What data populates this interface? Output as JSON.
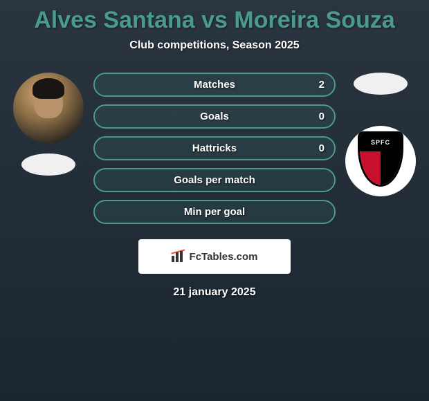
{
  "header": {
    "title": "Alves Santana vs Moreira Souza",
    "subtitle": "Club competitions, Season 2025"
  },
  "stats": [
    {
      "label": "Matches",
      "left_value": "2"
    },
    {
      "label": "Goals",
      "left_value": "0"
    },
    {
      "label": "Hattricks",
      "left_value": "0"
    },
    {
      "label": "Goals per match",
      "left_value": ""
    },
    {
      "label": "Min per goal",
      "left_value": ""
    }
  ],
  "club_badge": {
    "text": "SPFC",
    "colors": {
      "red": "#c8102e",
      "black": "#000000",
      "white": "#ffffff"
    }
  },
  "attribution": {
    "text": "FcTables.com"
  },
  "date": "21 january 2025",
  "styling": {
    "title_color": "#4a9b8e",
    "stat_border_color": "#4a9b8e",
    "stat_bg_color": "rgba(74, 155, 142, 0.12)",
    "bg_gradient_top": "#2a3540",
    "bg_gradient_bottom": "#1a2530",
    "text_color": "#ffffff",
    "title_fontsize": 34,
    "subtitle_fontsize": 16,
    "stat_label_fontsize": 15,
    "stat_row_height": 35,
    "avatar_size": 102
  }
}
